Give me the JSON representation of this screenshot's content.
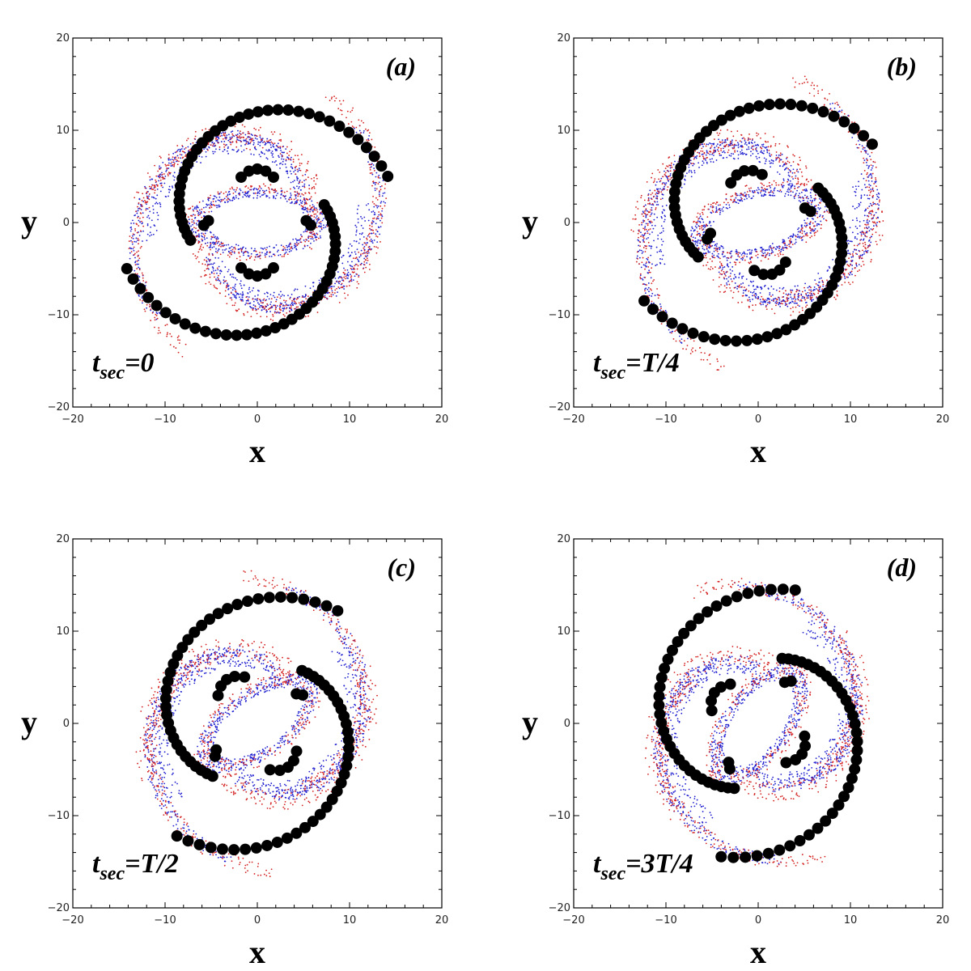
{
  "chart_data": [
    {
      "type": "scatter",
      "panel_label": "(a)",
      "time_text": {
        "t": "t",
        "sub": "sec",
        "value": "=0"
      },
      "rotation_deg": 0,
      "xlabel": "x",
      "ylabel": "y",
      "xlim": [
        -20,
        20
      ],
      "ylim": [
        -20,
        20
      ],
      "xticks": [
        -20,
        -10,
        0,
        10,
        20
      ],
      "yticks": [
        -20,
        -10,
        0,
        10,
        20
      ],
      "grid": false
    },
    {
      "type": "scatter",
      "panel_label": "(b)",
      "time_text": {
        "t": "t",
        "sub": "sec",
        "value": "=T/4"
      },
      "rotation_deg": 15,
      "xlabel": "x",
      "ylabel": "y",
      "xlim": [
        -20,
        20
      ],
      "ylim": [
        -20,
        20
      ],
      "xticks": [
        -20,
        -10,
        0,
        10,
        20
      ],
      "yticks": [
        -20,
        -10,
        0,
        10,
        20
      ],
      "grid": false
    },
    {
      "type": "scatter",
      "panel_label": "(c)",
      "time_text": {
        "t": "t",
        "sub": "sec",
        "value": "=T/2"
      },
      "rotation_deg": 35,
      "xlabel": "x",
      "ylabel": "y",
      "xlim": [
        -20,
        20
      ],
      "ylim": [
        -20,
        20
      ],
      "xticks": [
        -20,
        -10,
        0,
        10,
        20
      ],
      "yticks": [
        -20,
        -10,
        0,
        10,
        20
      ],
      "grid": false
    },
    {
      "type": "scatter",
      "panel_label": "(d)",
      "time_text": {
        "t": "t",
        "sub": "sec",
        "value": "=3T/4"
      },
      "rotation_deg": 55,
      "xlabel": "x",
      "ylabel": "y",
      "xlim": [
        -20,
        20
      ],
      "ylim": [
        -20,
        20
      ],
      "xticks": [
        -20,
        -10,
        0,
        10,
        20
      ],
      "yticks": [
        -20,
        -10,
        0,
        10,
        20
      ],
      "grid": false
    }
  ],
  "colors": {
    "response_red": "#d42020",
    "response_blue": "#1f1fd0",
    "density_max": "#000000"
  }
}
